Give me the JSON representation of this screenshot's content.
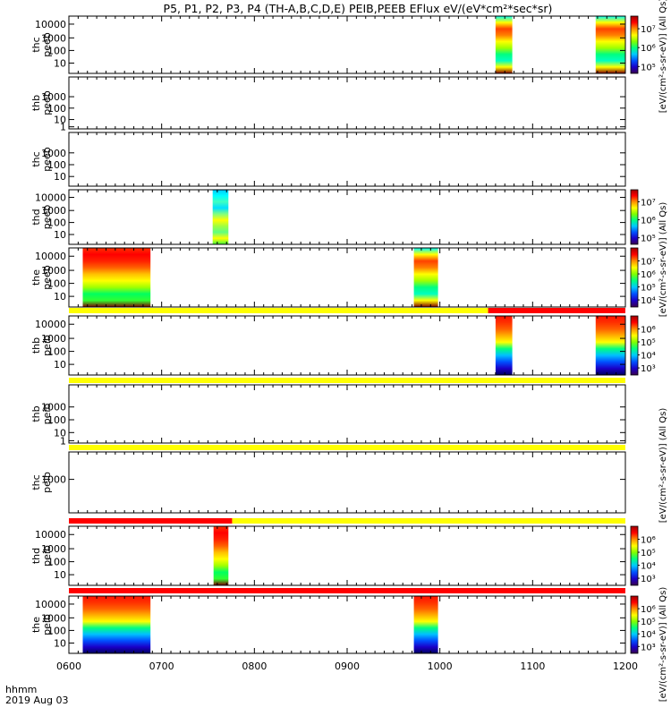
{
  "title": "P5, P1, P2, P3, P4 (TH-A,B,C,D,E) PEIB,PEEB EFlux eV/(eV*cm²*sec*sr)",
  "footer": {
    "line1": "hhmm",
    "line2": "2019 Aug 03"
  },
  "x_ticks": [
    "0600",
    "0700",
    "0800",
    "0900",
    "1000",
    "1100",
    "1200"
  ],
  "chart_data": [
    {
      "type": "heatmap",
      "ylabel": [
        "thc",
        "peeb"
      ],
      "x_range": [
        600,
        1200
      ],
      "y_ticks": [
        "10000",
        "1000",
        "100",
        "10"
      ],
      "data_blocks": [
        {
          "start": 1060,
          "end": 1078,
          "palette": "electron"
        },
        {
          "start": 1168,
          "end": 1200,
          "palette": "electron"
        }
      ],
      "colorbar": {
        "ticks": [
          "10⁷",
          "10⁶",
          "10⁵"
        ],
        "label": "eV/(cm²-s-sr-eV)"
      }
    },
    {
      "type": "heatmap",
      "ylabel": [
        "thb",
        "peeb"
      ],
      "x_range": [
        600,
        1200
      ],
      "y_ticks": [
        "1000",
        "100",
        "10",
        "1"
      ],
      "data_blocks": []
    },
    {
      "type": "heatmap",
      "ylabel": [
        "thc",
        "peeb"
      ],
      "x_range": [
        600,
        1200
      ],
      "y_ticks": [
        "1000",
        "100",
        "10"
      ],
      "data_blocks": []
    },
    {
      "type": "heatmap",
      "ylabel": [
        "thd",
        "peeb"
      ],
      "x_range": [
        600,
        1200
      ],
      "y_ticks": [
        "10000",
        "1000",
        "100",
        "10"
      ],
      "data_blocks": [
        {
          "start": 755,
          "end": 772,
          "palette": "cool"
        }
      ],
      "colorbar": {
        "ticks": [
          "10⁷",
          "10⁶",
          "10⁵"
        ],
        "label": "eV/(cm²-s-sr-eV)"
      }
    },
    {
      "type": "heatmap",
      "ylabel": [
        "the",
        "peeb"
      ],
      "x_range": [
        600,
        1200
      ],
      "y_ticks": [
        "10000",
        "1000",
        "100",
        "10"
      ],
      "data_blocks": [
        {
          "start": 615,
          "end": 688,
          "palette": "hot"
        },
        {
          "start": 972,
          "end": 998,
          "palette": "electron"
        }
      ],
      "status_bar": [
        {
          "start": 600,
          "end": 1052,
          "color": "#ffff00"
        },
        {
          "start": 1052,
          "end": 1200,
          "color": "#ff0000"
        }
      ],
      "colorbar": {
        "ticks": [
          "10⁷",
          "10⁶",
          "10⁵",
          "10⁴"
        ],
        "label": "eV/(cm²-s-sr-eV)"
      }
    },
    {
      "type": "heatmap",
      "ylabel": [
        "thb",
        "peib"
      ],
      "x_range": [
        600,
        1200
      ],
      "y_ticks": [
        "10000",
        "1000",
        "100",
        "10"
      ],
      "data_blocks": [
        {
          "start": 1060,
          "end": 1078,
          "palette": "ion"
        },
        {
          "start": 1168,
          "end": 1200,
          "palette": "ion"
        }
      ],
      "colorbar": {
        "ticks": [
          "10⁶",
          "10⁵",
          "10⁴",
          "10³"
        ],
        "label": "eV/(cm²-s-sr-eV)"
      }
    },
    {
      "type": "heatmap",
      "ylabel": [
        "thb",
        "peib"
      ],
      "x_range": [
        600,
        1200
      ],
      "y_ticks": [
        "1000",
        "100",
        "10",
        "1"
      ],
      "data_blocks": [],
      "status_bar": [
        {
          "start": 600,
          "end": 1200,
          "color": "#ffff00"
        }
      ]
    },
    {
      "type": "heatmap",
      "ylabel": [
        "thc",
        "peib"
      ],
      "x_range": [
        600,
        1200
      ],
      "y_ticks": [
        "1000"
      ],
      "data_blocks": [],
      "status_bar": [
        {
          "start": 600,
          "end": 1200,
          "color": "#ffff00"
        }
      ]
    },
    {
      "type": "heatmap",
      "ylabel": [
        "thd",
        "peib"
      ],
      "x_range": [
        600,
        1200
      ],
      "y_ticks": [
        "10000",
        "1000",
        "100",
        "10"
      ],
      "data_blocks": [
        {
          "start": 756,
          "end": 772,
          "palette": "hot"
        }
      ],
      "status_bar": [
        {
          "start": 600,
          "end": 776,
          "color": "#ff0000"
        },
        {
          "start": 776,
          "end": 1200,
          "color": "#ffff00"
        }
      ],
      "colorbar": {
        "ticks": [
          "10⁶",
          "10⁵",
          "10⁴",
          "10³"
        ],
        "label": "eV/(cm²-s-sr-eV)"
      }
    },
    {
      "type": "heatmap",
      "ylabel": [
        "the",
        "peib"
      ],
      "x_range": [
        600,
        1200
      ],
      "y_ticks": [
        "10000",
        "1000",
        "100",
        "10"
      ],
      "data_blocks": [
        {
          "start": 615,
          "end": 688,
          "palette": "ion"
        },
        {
          "start": 972,
          "end": 998,
          "palette": "ion"
        }
      ],
      "status_bar": [
        {
          "start": 600,
          "end": 1200,
          "color": "#ff0000"
        }
      ],
      "colorbar": {
        "ticks": [
          "10⁶",
          "10⁵",
          "10⁴",
          "10³"
        ],
        "label": "eV/(cm²-s-sr-eV)"
      }
    }
  ],
  "side_labels": [
    "[eV/(cm²-s-sr-eV)] (All Qs)",
    "[eV/(cm²-s-sr-eV)] (All Qs)",
    "[eV/(cm²-s-sr-eV)] (All Qs)",
    "[eV/(cm²-s-sr-eV)] (All Qs)"
  ],
  "colors": {
    "scale": [
      "#3a004f",
      "#1a00c8",
      "#0050ff",
      "#00c8ff",
      "#00ff80",
      "#80ff00",
      "#ffff00",
      "#ff9000",
      "#ff0000",
      "#a00000"
    ]
  }
}
